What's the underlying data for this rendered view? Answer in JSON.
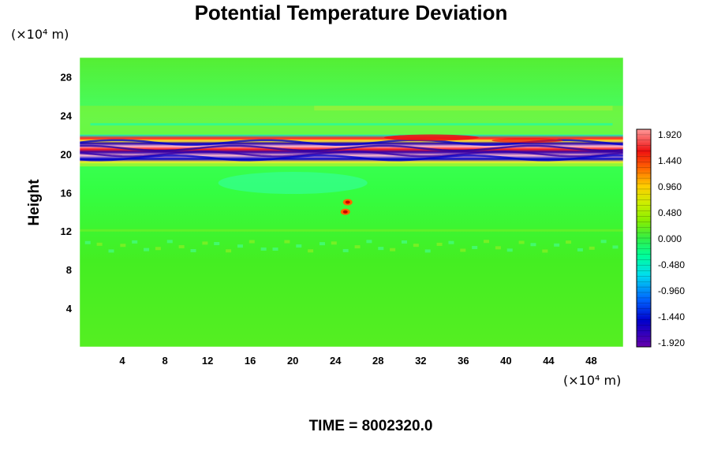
{
  "chart_data": {
    "type": "heatmap",
    "title": "Potential Temperature Deviation",
    "ylabel": "Height",
    "x_unit": "(×10⁴ m)",
    "y_unit": "(×10⁴ m)",
    "footer": "TIME = 8002320.0",
    "xlim": [
      0,
      51
    ],
    "ylim": [
      0,
      30
    ],
    "x_ticks": [
      4,
      8,
      12,
      16,
      20,
      24,
      28,
      32,
      36,
      40,
      44,
      48
    ],
    "y_ticks": [
      4,
      8,
      12,
      16,
      20,
      24,
      28
    ],
    "colorbar": {
      "min": -2.0,
      "max": 2.0,
      "ticks": [
        "1.920",
        "1.440",
        "0.960",
        "0.480",
        "0.000",
        "-0.480",
        "-0.960",
        "-1.440",
        "-1.920"
      ]
    },
    "features": [
      {
        "description": "dense positive/negative banding",
        "y_range": [
          19,
          22
        ],
        "value_range": [
          -1.92,
          1.92
        ]
      },
      {
        "description": "localized warm cells",
        "x": 25,
        "y": [
          15,
          14
        ],
        "value": 1.44
      },
      {
        "description": "weak cool patch",
        "x_range": [
          13,
          27
        ],
        "y_range": [
          15.5,
          18
        ],
        "value": -0.48
      },
      {
        "description": "weak warm layer",
        "y_range": [
          22,
          25
        ],
        "value": 0.48
      }
    ]
  }
}
